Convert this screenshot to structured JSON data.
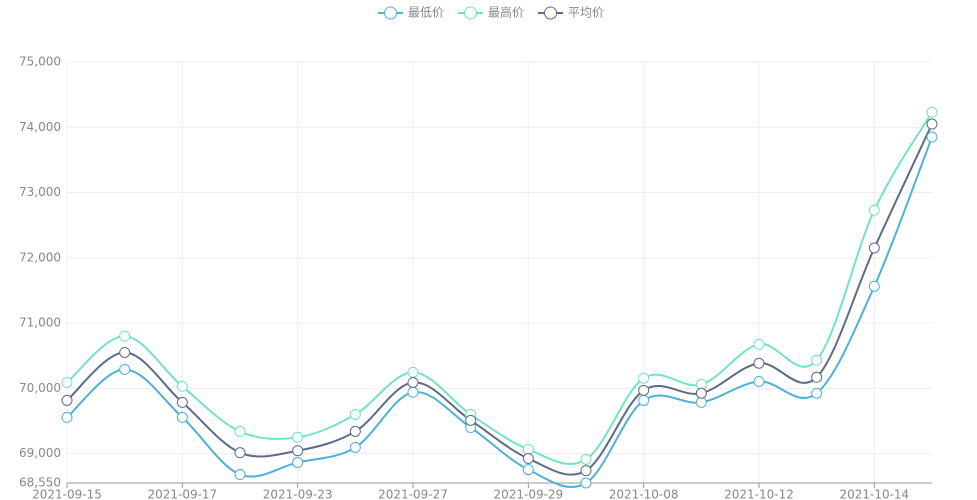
{
  "chart_data": {
    "type": "line",
    "categories": [
      "2021-09-15",
      null,
      "2021-09-17",
      null,
      "2021-09-23",
      null,
      "2021-09-27",
      null,
      "2021-09-29",
      null,
      "2021-10-08",
      null,
      "2021-10-12",
      null,
      "2021-10-14",
      null
    ],
    "series": [
      {
        "name": "最低价",
        "color": "#4cb1d9",
        "values": [
          69555,
          70290,
          69555,
          68680,
          68865,
          69095,
          69940,
          69400,
          68755,
          68550,
          69815,
          69785,
          70105,
          69925,
          71565,
          73850
        ]
      },
      {
        "name": "最高价",
        "color": "#72e3c4",
        "values": [
          70090,
          70800,
          70030,
          69340,
          69250,
          69600,
          70245,
          69600,
          69065,
          68910,
          70155,
          70060,
          70675,
          70430,
          72730,
          74230
        ]
      },
      {
        "name": "平均价",
        "color": "#5f6a8a",
        "values": [
          69815,
          70550,
          69785,
          69015,
          69045,
          69340,
          70090,
          69510,
          68925,
          68740,
          69970,
          69925,
          70385,
          70170,
          72150,
          74050
        ]
      }
    ],
    "ylim": [
      68550,
      75000
    ],
    "yticks": [
      {
        "value": 68550,
        "label": "68,550"
      },
      {
        "value": 69000,
        "label": "69,000"
      },
      {
        "value": 70000,
        "label": "70,000"
      },
      {
        "value": 71000,
        "label": "71,000"
      },
      {
        "value": 72000,
        "label": "72,000"
      },
      {
        "value": 73000,
        "label": "73,000"
      },
      {
        "value": 74000,
        "label": "74,000"
      },
      {
        "value": 75000,
        "label": "75,000"
      }
    ],
    "grid": true,
    "legend": "top",
    "smooth": true
  }
}
